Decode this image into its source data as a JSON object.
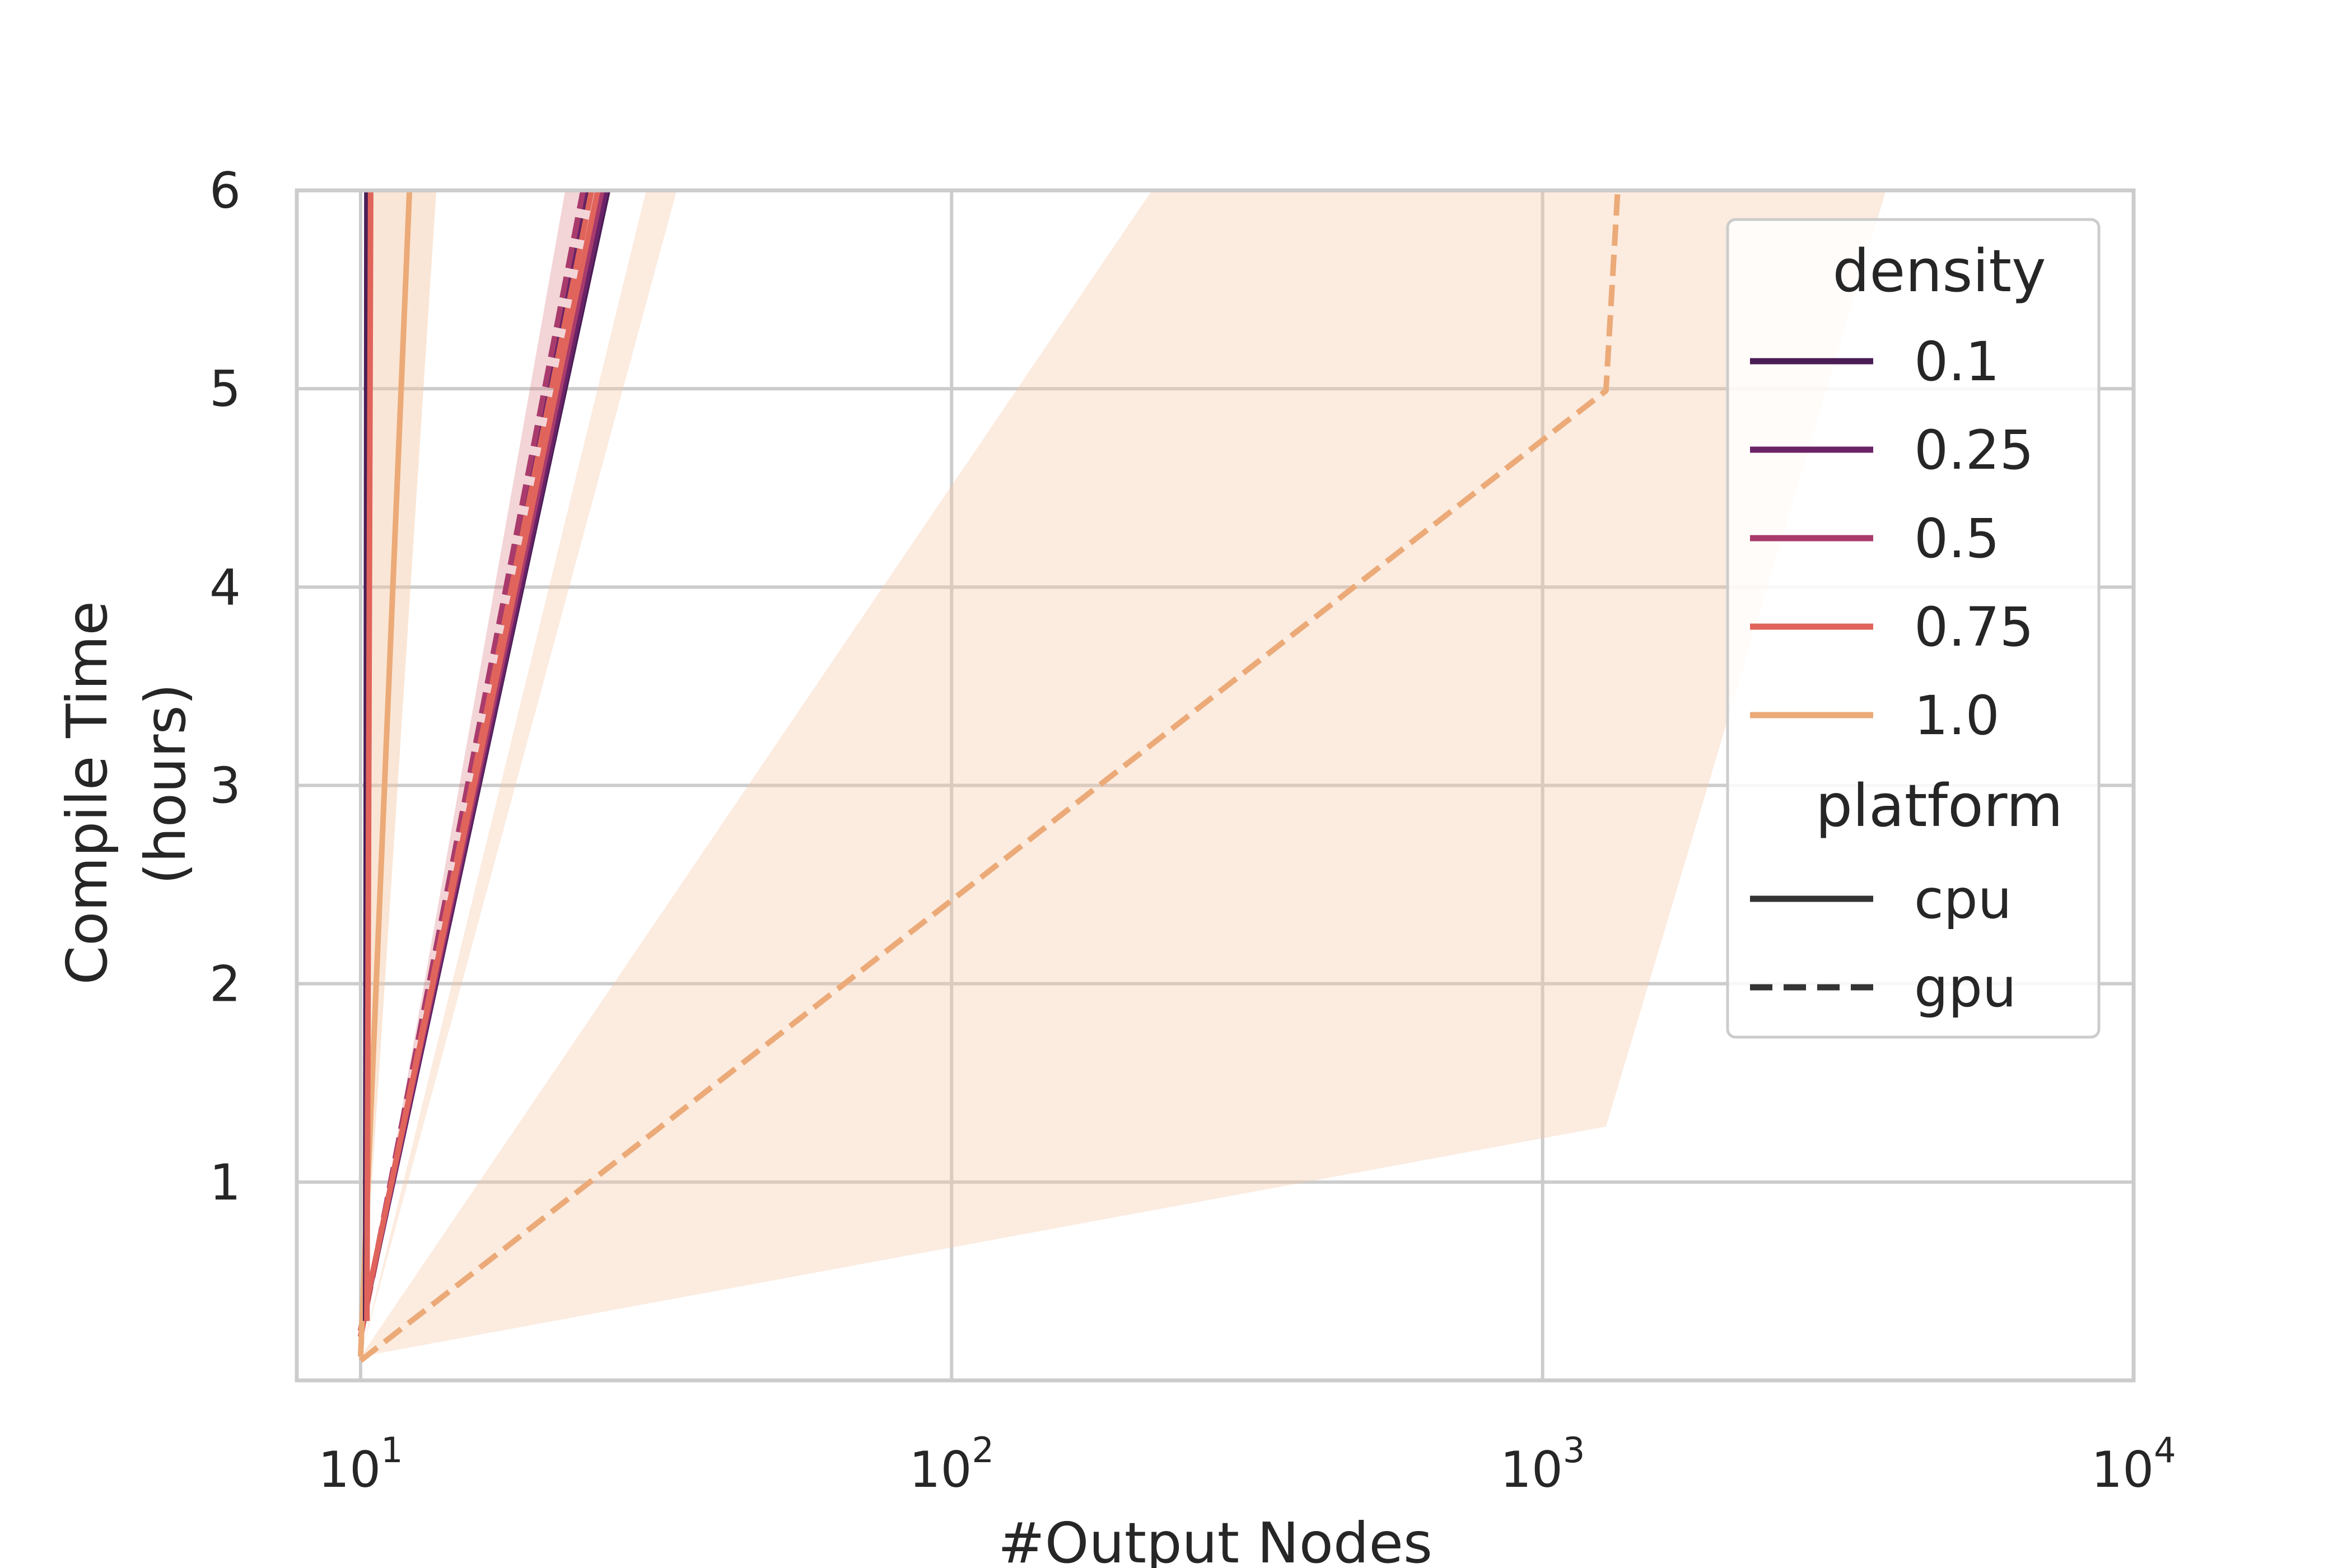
{
  "chart_data": {
    "type": "line",
    "title": "",
    "xlabel": "#Output Nodes",
    "ylabel_lines": [
      "Compile Time",
      "(hours)"
    ],
    "xscale": "log",
    "xlim": [
      7.8,
      10000
    ],
    "ylim": [
      0,
      6
    ],
    "grid": true,
    "x_ticks": [
      {
        "value": 10,
        "base": "10",
        "exp": "1"
      },
      {
        "value": 100,
        "base": "10",
        "exp": "2"
      },
      {
        "value": 1000,
        "base": "10",
        "exp": "3"
      },
      {
        "value": 10000,
        "base": "10",
        "exp": "4"
      }
    ],
    "y_ticks": [
      {
        "value": 1,
        "label": "1"
      },
      {
        "value": 2,
        "label": "2"
      },
      {
        "value": 3,
        "label": "3"
      },
      {
        "value": 4,
        "label": "4"
      },
      {
        "value": 5,
        "label": "5"
      },
      {
        "value": 6,
        "label": "6"
      }
    ],
    "legend": {
      "position": "upper-right",
      "density_title": "density",
      "density_items": [
        {
          "label": "0.1",
          "color": "#4a1d55"
        },
        {
          "label": "0.25",
          "color": "#6b2367"
        },
        {
          "label": "0.5",
          "color": "#a93b6c"
        },
        {
          "label": "0.75",
          "color": "#e0645b"
        },
        {
          "label": "1.0",
          "color": "#ebaa78"
        }
      ],
      "platform_title": "platform",
      "platform_items": [
        {
          "label": "cpu",
          "style": "solid"
        },
        {
          "label": "gpu",
          "style": "dashed"
        }
      ]
    },
    "bands": [
      {
        "color": "#f5c7a4",
        "opacity": 0.35,
        "upper": [
          [
            10,
            0.12
          ],
          [
            230,
            6.1
          ]
        ],
        "lower": [
          [
            10,
            0.12
          ],
          [
            1280,
            1.28
          ],
          [
            3900,
            6.1
          ]
        ]
      },
      {
        "color": "#f5c7a4",
        "opacity": 0.35,
        "upper": [
          [
            10,
            0.12
          ],
          [
            35,
            6.1
          ]
        ],
        "lower": [
          [
            10,
            0.12
          ],
          [
            31,
            6.1
          ]
        ]
      },
      {
        "color": "#f5c7a4",
        "opacity": 0.45,
        "upper": [
          [
            10,
            0.12
          ],
          [
            10.4,
            6.1
          ]
        ],
        "lower": [
          [
            10,
            0.12
          ],
          [
            13.5,
            6.1
          ]
        ]
      },
      {
        "color": "#d8747a",
        "opacity": 0.3,
        "upper": [
          [
            10,
            0.2
          ],
          [
            22.5,
            6.1
          ]
        ],
        "lower": [
          [
            10,
            0.2
          ],
          [
            26,
            6.1
          ]
        ]
      }
    ],
    "series": [
      {
        "density": "1.0",
        "platform": "gpu",
        "color": "#ebaa78",
        "points": [
          [
            10,
            0.1
          ],
          [
            1280,
            4.99
          ],
          [
            1340,
            6.0
          ]
        ]
      },
      {
        "density": "0.1",
        "platform": "gpu",
        "color": "#4a1d55",
        "points": [
          [
            10,
            0.22
          ],
          [
            24.2,
            6.0
          ]
        ]
      },
      {
        "density": "0.25",
        "platform": "gpu",
        "color": "#6b2367",
        "points": [
          [
            10,
            0.22
          ],
          [
            24.0,
            6.0
          ]
        ]
      },
      {
        "density": "0.5",
        "platform": "gpu",
        "color": "#a93b6c",
        "points": [
          [
            10,
            0.22
          ],
          [
            23.8,
            6.0
          ]
        ]
      },
      {
        "density": "0.75",
        "platform": "gpu",
        "color": "#e0645b",
        "points": [
          [
            10,
            0.22
          ],
          [
            24.6,
            6.0
          ]
        ]
      },
      {
        "density": "0.1",
        "platform": "cpu",
        "color": "#4a1d55",
        "points": [
          [
            10,
            0.25
          ],
          [
            26.2,
            6.0
          ]
        ]
      },
      {
        "density": "0.25",
        "platform": "cpu",
        "color": "#6b2367",
        "points": [
          [
            10,
            0.25
          ],
          [
            26.0,
            6.0
          ]
        ]
      },
      {
        "density": "0.5",
        "platform": "cpu",
        "color": "#a93b6c",
        "points": [
          [
            10,
            0.25
          ],
          [
            25.6,
            6.0
          ]
        ]
      },
      {
        "density": "0.75",
        "platform": "cpu",
        "color": "#e0645b",
        "points": [
          [
            10,
            0.25
          ],
          [
            25.2,
            6.0
          ]
        ]
      },
      {
        "density": "1.0",
        "platform": "cpu",
        "color": "#ebaa78",
        "points": [
          [
            10,
            0.12
          ],
          [
            12.1,
            6.0
          ]
        ]
      },
      {
        "density": "0.1",
        "platform": "cpu",
        "color": "#4a1d55",
        "points": [
          [
            10.2,
            0.3
          ],
          [
            10.25,
            6.0
          ]
        ]
      },
      {
        "density": "0.75",
        "platform": "cpu",
        "color": "#e0645b",
        "points": [
          [
            10.25,
            0.3
          ],
          [
            10.4,
            6.0
          ]
        ]
      }
    ]
  }
}
